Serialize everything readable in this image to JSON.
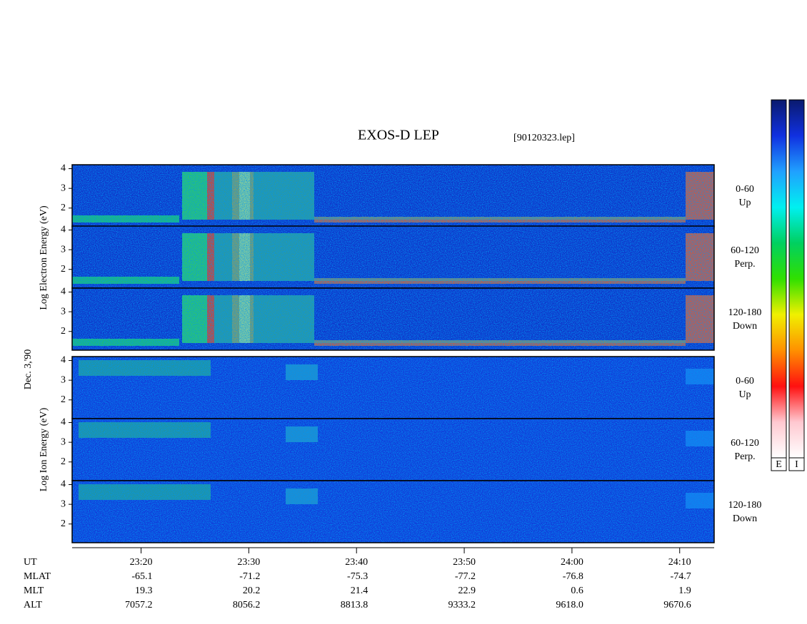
{
  "chart_data": {
    "type": "spectrogram",
    "title": "EXOS-D LEP",
    "subtitle": "[90120323.lep]",
    "date_label": "Dec. 3,'90",
    "groups": [
      {
        "label": "Log Electron Energy (eV)",
        "panels": [
          {
            "name": "0-60",
            "direction": "Up"
          },
          {
            "name": "60-120",
            "direction": "Perp."
          },
          {
            "name": "120-180",
            "direction": "Down"
          }
        ]
      },
      {
        "label": "Log Ion Energy (eV)",
        "panels": [
          {
            "name": "0-60",
            "direction": "Up"
          },
          {
            "name": "60-120",
            "direction": "Perp."
          },
          {
            "name": "120-180",
            "direction": "Down"
          }
        ]
      }
    ],
    "ylim": [
      1.05,
      4.2
    ],
    "yticks": [
      2,
      3,
      4
    ],
    "xlim": [
      1393.6,
      1453.2
    ],
    "xticks": [
      {
        "value": 1400,
        "label": "23:20"
      },
      {
        "value": 1410,
        "label": "23:30"
      },
      {
        "value": 1420,
        "label": "23:40"
      },
      {
        "value": 1430,
        "label": "23:50"
      },
      {
        "value": 1440,
        "label": "24:00"
      },
      {
        "value": 1450,
        "label": "24:10"
      }
    ],
    "x_label": "UT",
    "ephemeris": [
      {
        "name": "MLAT",
        "values": [
          -65.1,
          -71.2,
          -75.3,
          -77.2,
          -76.8,
          -74.7
        ]
      },
      {
        "name": "MLT",
        "values": [
          19.3,
          20.2,
          21.4,
          22.9,
          0.6,
          1.9
        ]
      },
      {
        "name": "ALT",
        "values": [
          7057.2,
          8056.2,
          8813.8,
          9333.2,
          9618.0,
          9670.6
        ],
        "value_labels": [
          "7057.2",
          "8056.2",
          "8813.8",
          "9333.2",
          "9618.0",
          "9670.6"
        ]
      }
    ],
    "colorbars": [
      {
        "label": "E"
      },
      {
        "label": "I"
      }
    ],
    "colormap": [
      "#0a1a6e",
      "#1030e0",
      "#20a0ff",
      "#00f0f0",
      "#00d060",
      "#30e000",
      "#f0f000",
      "#ff9000",
      "#ff1010",
      "#ffc8d0",
      "#ffffff"
    ]
  }
}
